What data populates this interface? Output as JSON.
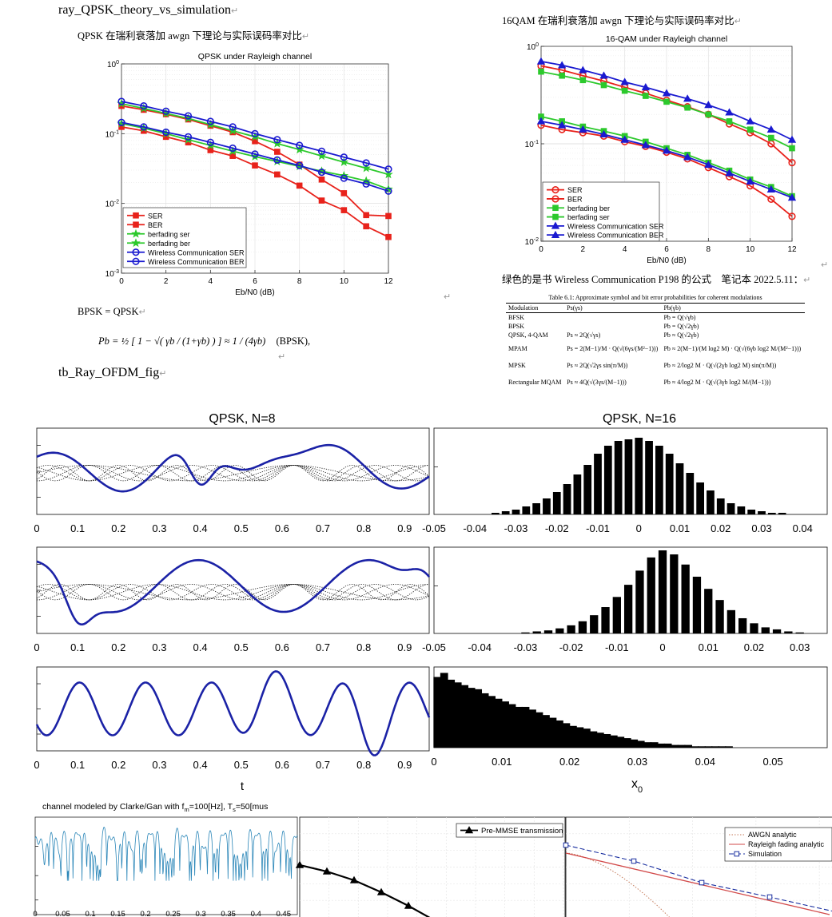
{
  "document": {
    "heading_top": "ray_QPSK_theory_vs_simulation",
    "qpsk_caption": "QPSK 在瑞利衰落加 awgn 下理论与实际误码率对比",
    "qam_caption": "16QAM 在瑞利衰落加 awgn 下理论与实际误码率对比",
    "green_note": "绿色的是书 Wireless Communication P198 的公式　笔记本 2022.5.11：",
    "bpsk_eq_label": "BPSK = QPSK",
    "bpsk_formula_lhs": "Pb = ½ [ 1 − √( γb / (1+γb) ) ] ≈ 1 / (4γb)",
    "bpsk_formula_tag": "(BPSK),",
    "heading_ofdm": "tb_Ray_OFDM_fig",
    "return_mark": "↵"
  },
  "table": {
    "title": "Table 6.1: Approximate symbol and bit error probabilities for coherent modulations",
    "headers": [
      "Modulation",
      "Ps(γs)",
      "Pb(γb)"
    ],
    "rows": [
      [
        "BFSK",
        "",
        "Pb = Q(√γb)"
      ],
      [
        "BPSK",
        "",
        "Pb = Q(√2γb)"
      ],
      [
        "QPSK, 4-QAM",
        "Ps ≈ 2Q(√γs)",
        "Pb ≈ Q(√2γb)"
      ],
      [
        "MPAM",
        "Ps = 2(M−1)/M · Q(√(6γs/(M²−1)))",
        "Pb ≈ 2(M−1)/(M log2 M) · Q(√(6γb log2 M/(M²−1)))"
      ],
      [
        "MPSK",
        "Ps ≈ 2Q(√2γs sin(π/M))",
        "Pb ≈ 2/log2 M · Q(√(2γb log2 M) sin(π/M))"
      ],
      [
        "Rectangular MQAM",
        "Ps ≈ 4Q(√(3γs/(M−1)))",
        "Pb ≈ 4/log2 M · Q(√(3γb log2 M/(M−1)))"
      ]
    ]
  },
  "chart_data": [
    {
      "type": "line",
      "title": "QPSK under Rayleigh channel",
      "xlabel": "Eb/N0 (dB)",
      "ylabel": "",
      "yscale": "log",
      "xlim": [
        0,
        12
      ],
      "ylim": [
        0.001,
        1
      ],
      "x_ticks": [
        "0",
        "2",
        "4",
        "6",
        "8",
        "10",
        "12"
      ],
      "y_ticks": [
        "10^0",
        "10^-1",
        "10^-2",
        "10^-3"
      ],
      "legend_position": "bottom-left",
      "x": [
        0,
        1,
        2,
        3,
        4,
        5,
        6,
        7,
        8,
        9,
        10,
        11,
        12
      ],
      "series": [
        {
          "name": "SER",
          "color": "#e8221b",
          "marker": "square",
          "values": [
            0.25,
            0.22,
            0.19,
            0.16,
            0.13,
            0.105,
            0.078,
            0.055,
            0.036,
            0.022,
            0.014,
            0.0068,
            0.0066
          ]
        },
        {
          "name": "BER",
          "color": "#e8221b",
          "marker": "square",
          "values": [
            0.125,
            0.11,
            0.09,
            0.075,
            0.058,
            0.048,
            0.035,
            0.026,
            0.018,
            0.011,
            0.008,
            0.0047,
            0.0033
          ]
        },
        {
          "name": "berfading ser",
          "color": "#2cc92c",
          "marker": "star",
          "values": [
            0.27,
            0.23,
            0.195,
            0.165,
            0.135,
            0.11,
            0.09,
            0.072,
            0.059,
            0.048,
            0.039,
            0.032,
            0.026
          ]
        },
        {
          "name": "berfading ber",
          "color": "#2cc92c",
          "marker": "star",
          "values": [
            0.14,
            0.12,
            0.1,
            0.082,
            0.068,
            0.056,
            0.047,
            0.04,
            0.034,
            0.029,
            0.025,
            0.021,
            0.016
          ]
        },
        {
          "name": "Wireless Communication SER",
          "color": "#1a1ad0",
          "marker": "circle",
          "values": [
            0.29,
            0.25,
            0.21,
            0.18,
            0.15,
            0.125,
            0.1,
            0.082,
            0.068,
            0.056,
            0.046,
            0.038,
            0.031
          ]
        },
        {
          "name": "Wireless Communication BER",
          "color": "#1a1ad0",
          "marker": "circle",
          "values": [
            0.145,
            0.125,
            0.105,
            0.09,
            0.075,
            0.062,
            0.051,
            0.042,
            0.035,
            0.028,
            0.023,
            0.019,
            0.015
          ]
        }
      ]
    },
    {
      "type": "line",
      "title": "16-QAM under Rayleigh channel",
      "xlabel": "Eb/N0 (dB)",
      "ylabel": "",
      "yscale": "log",
      "xlim": [
        0,
        12
      ],
      "ylim": [
        0.01,
        1
      ],
      "x_ticks": [
        "0",
        "2",
        "4",
        "6",
        "8",
        "10",
        "12"
      ],
      "y_ticks": [
        "10^0",
        "10^-1",
        "10^-2"
      ],
      "legend_position": "bottom-left",
      "x": [
        0,
        1,
        2,
        3,
        4,
        5,
        6,
        7,
        8,
        9,
        10,
        11,
        12
      ],
      "series": [
        {
          "name": "SER",
          "color": "#e8221b",
          "marker": "circle",
          "values": [
            0.63,
            0.57,
            0.5,
            0.44,
            0.38,
            0.33,
            0.28,
            0.24,
            0.2,
            0.16,
            0.13,
            0.1,
            0.064
          ]
        },
        {
          "name": "BER",
          "color": "#e8221b",
          "marker": "circle",
          "values": [
            0.155,
            0.14,
            0.13,
            0.12,
            0.105,
            0.094,
            0.082,
            0.07,
            0.057,
            0.046,
            0.037,
            0.027,
            0.018
          ]
        },
        {
          "name": "berfading ber",
          "color": "#2cc92c",
          "marker": "square",
          "values": [
            0.19,
            0.17,
            0.15,
            0.135,
            0.12,
            0.105,
            0.09,
            0.077,
            0.064,
            0.053,
            0.043,
            0.036,
            0.029
          ]
        },
        {
          "name": "berfading ser",
          "color": "#2cc92c",
          "marker": "square",
          "values": [
            0.55,
            0.5,
            0.45,
            0.4,
            0.35,
            0.31,
            0.27,
            0.235,
            0.2,
            0.17,
            0.14,
            0.115,
            0.09
          ]
        },
        {
          "name": "Wireless Communication SER",
          "color": "#1a1ad0",
          "marker": "triangle",
          "values": [
            0.7,
            0.64,
            0.57,
            0.5,
            0.43,
            0.38,
            0.33,
            0.29,
            0.25,
            0.21,
            0.17,
            0.14,
            0.11
          ]
        },
        {
          "name": "Wireless Communication BER",
          "color": "#1a1ad0",
          "marker": "triangle",
          "values": [
            0.17,
            0.155,
            0.14,
            0.125,
            0.11,
            0.097,
            0.085,
            0.073,
            0.061,
            0.05,
            0.041,
            0.034,
            0.028
          ]
        }
      ]
    },
    {
      "type": "line",
      "title": "QPSK, N=8",
      "xlabel": "t",
      "x_ticks": [
        "0",
        "0.1",
        "0.2",
        "0.3",
        "0.4",
        "0.5",
        "0.6",
        "0.7",
        "0.8",
        "0.9"
      ],
      "panels": [
        "upper",
        "middle",
        "lower"
      ],
      "note": "three stacked time-domain panels: blue envelope over dotted subcarrier traces"
    },
    {
      "type": "bar",
      "title": "QPSK, N=16",
      "xlabel": "x0",
      "panels": [
        {
          "x_ticks": [
            "-0.05",
            "-0.04",
            "-0.03",
            "-0.02",
            "-0.01",
            "0",
            "0.01",
            "0.02",
            "0.03",
            "0.04"
          ],
          "bin_centers": [
            -0.035,
            -0.0325,
            -0.03,
            -0.0275,
            -0.025,
            -0.0225,
            -0.02,
            -0.0175,
            -0.015,
            -0.0125,
            -0.01,
            -0.0075,
            -0.005,
            -0.0025,
            0,
            0.0025,
            0.005,
            0.0075,
            0.01,
            0.0125,
            0.015,
            0.0175,
            0.02,
            0.0225,
            0.025,
            0.0275,
            0.03,
            0.0325,
            0.035
          ],
          "values": [
            1,
            2,
            3,
            5,
            7,
            10,
            14,
            19,
            25,
            31,
            38,
            43,
            46,
            47,
            48,
            46,
            43,
            38,
            32,
            26,
            20,
            15,
            10,
            7,
            5,
            3,
            2,
            1,
            1
          ]
        },
        {
          "x_ticks": [
            "-0.05",
            "-0.04",
            "-0.03",
            "-0.02",
            "-0.01",
            "0",
            "0.01",
            "0.02",
            "0.03"
          ],
          "bin_centers": [
            -0.03,
            -0.0275,
            -0.025,
            -0.0225,
            -0.02,
            -0.0175,
            -0.015,
            -0.0125,
            -0.01,
            -0.0075,
            -0.005,
            -0.0025,
            0,
            0.0025,
            0.005,
            0.0075,
            0.01,
            0.0125,
            0.015,
            0.0175,
            0.02,
            0.0225,
            0.025,
            0.0275,
            0.03
          ],
          "values": [
            1,
            2,
            3,
            5,
            8,
            12,
            18,
            26,
            36,
            48,
            62,
            75,
            82,
            78,
            68,
            56,
            44,
            33,
            23,
            15,
            10,
            6,
            4,
            2,
            1
          ]
        },
        {
          "x_ticks": [
            "0",
            "0.01",
            "0.02",
            "0.03",
            "0.04",
            "0.05"
          ],
          "bin_centers": [
            0.0005,
            0.0015,
            0.0025,
            0.0035,
            0.0045,
            0.0055,
            0.0065,
            0.0075,
            0.0085,
            0.0095,
            0.0105,
            0.0115,
            0.0125,
            0.0135,
            0.0145,
            0.0155,
            0.0165,
            0.0175,
            0.0185,
            0.0195,
            0.0205,
            0.0215,
            0.0225,
            0.0235,
            0.0245,
            0.0255,
            0.0265,
            0.0275,
            0.0285,
            0.0295,
            0.0305,
            0.0315,
            0.0325,
            0.0335,
            0.0345,
            0.0355,
            0.0365,
            0.0375,
            0.0385,
            0.0395,
            0.0405,
            0.0415,
            0.0425,
            0.0435
          ],
          "values": [
            52,
            55,
            50,
            48,
            46,
            44,
            43,
            40,
            38,
            36,
            34,
            32,
            30,
            30,
            28,
            26,
            24,
            22,
            20,
            18,
            16,
            15,
            14,
            12,
            11,
            10,
            9,
            8,
            7,
            6,
            5,
            4,
            4,
            3,
            3,
            2,
            2,
            2,
            1,
            1,
            1,
            1,
            1,
            1
          ]
        }
      ]
    },
    {
      "type": "line",
      "title": "channel modeled by Clarke/Gan with fm=100[Hz], Ts=50[mus",
      "x_ticks": [
        "0",
        "0.05",
        "0.1",
        "0.15",
        "0.2",
        "0.25",
        "0.3",
        "0.35",
        "0.4",
        "0.45"
      ]
    },
    {
      "type": "line",
      "legend": [
        "Pre-MMSE transmission"
      ],
      "series": [
        {
          "name": "Pre-MMSE transmission",
          "color": "#000000",
          "marker": "triangle"
        }
      ]
    },
    {
      "type": "line",
      "legend": [
        "AWGN analytic",
        "Rayleigh fading analytic",
        "Simulation"
      ],
      "series": [
        {
          "name": "AWGN analytic",
          "color": "#c47a5a",
          "style": "dotted"
        },
        {
          "name": "Rayleigh fading analytic",
          "color": "#d24a4a",
          "style": "solid"
        },
        {
          "name": "Simulation",
          "color": "#1a2fa0",
          "style": "dashed",
          "marker": "square"
        }
      ]
    }
  ]
}
